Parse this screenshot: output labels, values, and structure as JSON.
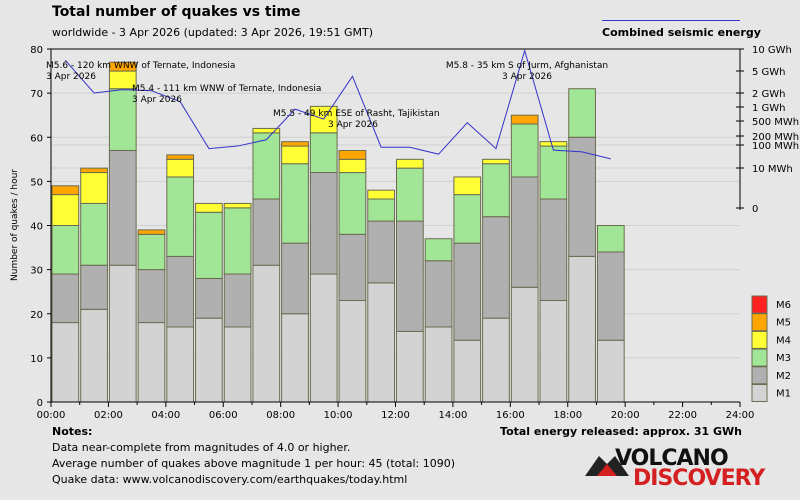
{
  "header": {
    "title": "Total number of quakes vs time",
    "subtitle": "worldwide -  3 Apr 2026 (updated: 3 Apr 2026, 19:51 GMT)",
    "energy_legend": "Combined seismic energy"
  },
  "chart_data": {
    "type": "bar",
    "stacked": true,
    "ylabel": "Number of quakes / hour",
    "ylim": [
      0,
      80
    ],
    "yticks": [
      "0",
      "10",
      "20",
      "30",
      "40",
      "50",
      "60",
      "70",
      "80"
    ],
    "xticks": [
      "00:00",
      "02:00",
      "04:00",
      "06:00",
      "08:00",
      "10:00",
      "12:00",
      "14:00",
      "16:00",
      "18:00",
      "20:00",
      "22:00",
      "24:00"
    ],
    "grid": true,
    "legend_position": "bottom-right",
    "series": [
      {
        "name": "M1",
        "color": "#d3d3d3",
        "values": [
          18,
          21,
          31,
          18,
          17,
          19,
          17,
          31,
          20,
          29,
          23,
          27,
          16,
          17,
          14,
          19,
          26,
          23,
          33,
          14
        ]
      },
      {
        "name": "M2",
        "color": "#b0b0b0",
        "values": [
          11,
          10,
          26,
          12,
          16,
          9,
          12,
          15,
          16,
          23,
          15,
          14,
          25,
          15,
          22,
          23,
          25,
          23,
          27,
          20
        ]
      },
      {
        "name": "M3",
        "color": "#a0e696",
        "values": [
          11,
          14,
          14,
          8,
          18,
          15,
          15,
          15,
          18,
          9,
          14,
          5,
          12,
          5,
          11,
          12,
          12,
          12,
          11,
          6
        ]
      },
      {
        "name": "M4",
        "color": "#ffff33",
        "values": [
          7,
          7,
          4,
          0,
          4,
          2,
          1,
          1,
          4,
          6,
          3,
          2,
          2,
          0,
          4,
          1,
          0,
          1,
          0,
          0
        ]
      },
      {
        "name": "M5",
        "color": "#ffa500",
        "values": [
          2,
          1,
          2,
          1,
          1,
          0,
          0,
          0,
          1,
          0,
          2,
          0,
          0,
          0,
          0,
          0,
          2,
          0,
          0,
          0
        ]
      },
      {
        "name": "M6",
        "color": "#ff2020",
        "values": [
          0,
          0,
          0,
          0,
          0,
          0,
          0,
          0,
          0,
          0,
          0,
          0,
          0,
          0,
          0,
          0,
          0,
          0,
          0,
          0
        ]
      }
    ],
    "energy_line": {
      "name": "Combined seismic energy",
      "color": "#3333cc",
      "unit": "MWh",
      "values": [
        7000,
        2000,
        2300,
        2200,
        1300,
        70,
        90,
        150,
        900,
        550,
        4000,
        80,
        80,
        40,
        450,
        70,
        9500,
        60,
        50,
        25
      ]
    },
    "energy_axis_ticks": [
      {
        "label": "10 GWh",
        "value": 10000
      },
      {
        "label": "5 GWh",
        "value": 5000
      },
      {
        "label": "2 GWh",
        "value": 2000
      },
      {
        "label": "1 GWh",
        "value": 1000
      },
      {
        "label": "500 MWh",
        "value": 500
      },
      {
        "label": "200 MWh",
        "value": 200
      },
      {
        "label": "100 MWh",
        "value": 100
      },
      {
        "label": "10 MWh",
        "value": 10
      },
      {
        "label": "0",
        "value": 0
      }
    ],
    "annotations": [
      {
        "text": "M5.6 - 120 km WNW of Ternate, Indonesia",
        "date": "3 Apr 2026"
      },
      {
        "text": "M5.4 - 111 km WNW of Ternate, Indonesia",
        "date": "3 Apr 2026"
      },
      {
        "text": "M5.5 - 49 km ESE of Rasht, Tajikistan",
        "date": "3 Apr 2026"
      },
      {
        "text": "M5.8 - 35 km S of Jurm, Afghanistan",
        "date": "3 Apr 2026"
      }
    ]
  },
  "footer": {
    "notes_label": "Notes:",
    "notes": [
      "Data near-complete from magnitudes of 4.0 or higher.",
      "Average number of quakes above magnitude 1 per hour: 45 (total: 1090)",
      "Quake data: www.volcanodiscovery.com/earthquakes/today.html"
    ],
    "total_energy": "Total energy released: approx. 31 GWh",
    "logo_text": "VOLCANO DISCOVERY"
  }
}
